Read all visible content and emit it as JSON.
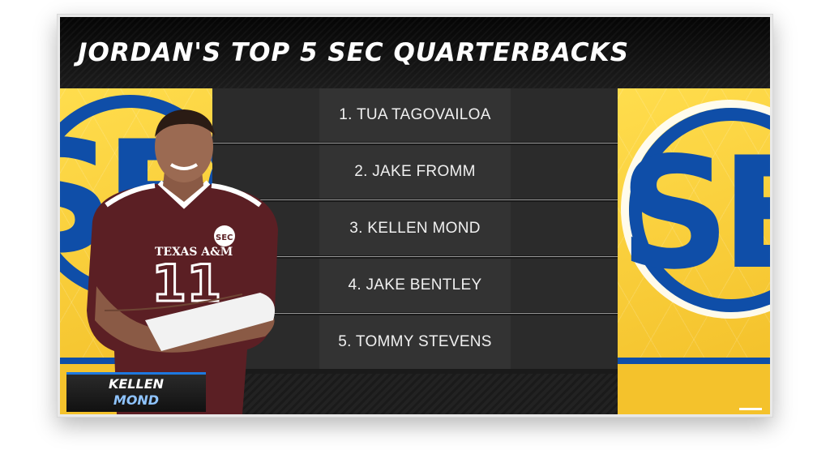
{
  "header": {
    "title": "JORDAN'S TOP 5 SEC QUARTERBACKS"
  },
  "rankings": [
    "1. TUA TAGOVAILOA",
    "2. JAKE FROMM",
    "3. KELLEN MOND",
    "4. JAKE BENTLEY",
    "5. TOMMY STEVENS"
  ],
  "featured_player": {
    "first_name": "KELLEN",
    "last_name": "MOND",
    "jersey_text": "TEXAS A&M",
    "jersey_number": "11",
    "patch": "SEC"
  },
  "logo_text": "SEC",
  "colors": {
    "sec_gold": "#f4c22c",
    "sec_blue": "#0f4ea8",
    "name_tag_accent": "#1e78e0",
    "jersey_maroon": "#5b1f24"
  }
}
